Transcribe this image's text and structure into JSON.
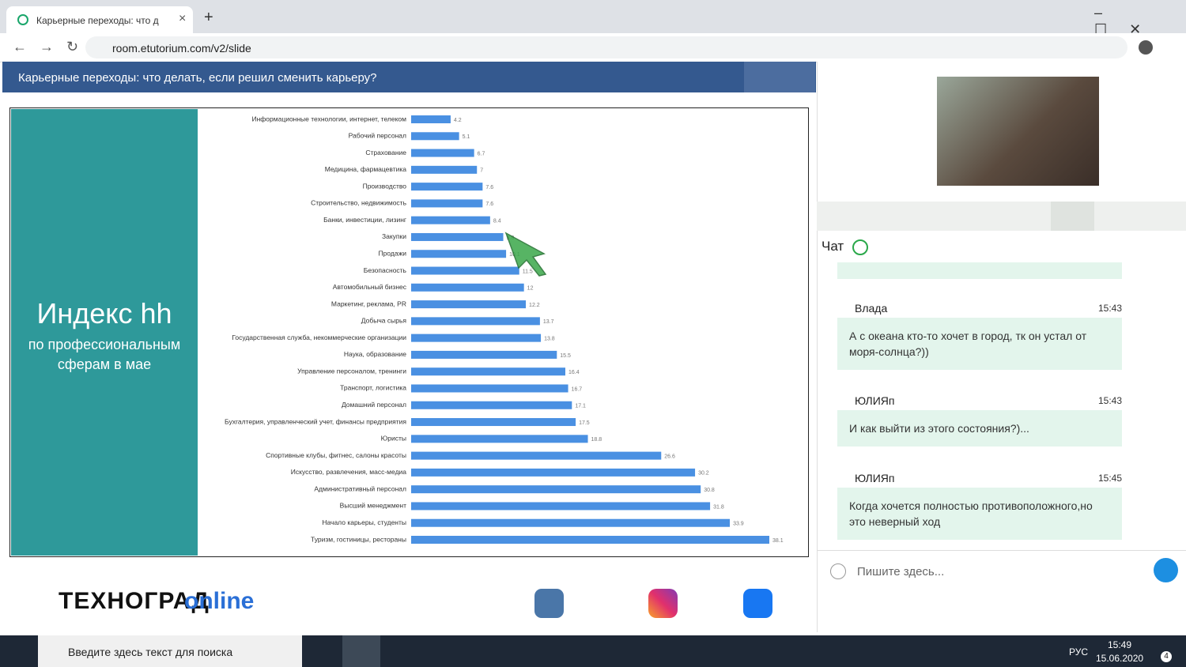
{
  "browser": {
    "tab_title": "Карьерные переходы: что д",
    "url": "room.etutorium.com/v2/slide"
  },
  "slide": {
    "title": "Карьерные переходы: что делать, если решил сменить карьеру?",
    "panel_title": "Индекс hh",
    "panel_subtitle": "по профессиональным сферам в мае",
    "logo": "ТЕХНОГРАД",
    "logo_suffix": "online"
  },
  "chart_data": {
    "type": "bar",
    "orientation": "horizontal",
    "color": "#4a90e2",
    "categories": [
      "Информационные технологии, интернет, телеком",
      "Рабочий персонал",
      "Страхование",
      "Медицина, фармацевтика",
      "Производство",
      "Строительство, недвижимость",
      "Банки, инвестиции, лизинг",
      "Закупки",
      "Продажи",
      "Безопасность",
      "Автомобильный бизнес",
      "Маркетинг, реклама, PR",
      "Добыча сырья",
      "Государственная служба, некоммерческие организации",
      "Наука, образование",
      "Управление персоналом, тренинги",
      "Транспорт, логистика",
      "Домашний персонал",
      "Бухгалтерия, управленческий учет, финансы предприятия",
      "Юристы",
      "Спортивные клубы, фитнес, салоны красоты",
      "Искусство, развлечения, масс-медиа",
      "Административный персонал",
      "Высший менеджмент",
      "Начало карьеры, студенты",
      "Туризм, гостиницы, рестораны"
    ],
    "values": [
      4.2,
      5.1,
      6.7,
      7,
      7.6,
      7.6,
      8.4,
      9.8,
      10.1,
      11.5,
      12,
      12.2,
      13.7,
      13.8,
      15.5,
      16.4,
      16.7,
      17.1,
      17.5,
      18.8,
      26.6,
      30.2,
      30.8,
      31.8,
      33.9,
      38.1
    ]
  },
  "chat": {
    "title": "Чат",
    "placeholder": "Пишите здесь...",
    "messages": [
      {
        "author": "Влада",
        "time": "15:43",
        "text": "А с океана кто-то хочет в город, тк он устал от моря-солнца?))"
      },
      {
        "author": "ЮЛИЯп",
        "time": "15:43",
        "text": "И как выйти из этого состояния?)..."
      },
      {
        "author": "ЮЛИЯп",
        "time": "15:45",
        "text": "Когда хочется полностью противоположного,но это неверный ход"
      }
    ]
  },
  "taskbar": {
    "search": "Введите здесь текст для поиска",
    "language": "РУС",
    "time": "15:49",
    "date": "15.06.2020",
    "notifications": 4
  }
}
